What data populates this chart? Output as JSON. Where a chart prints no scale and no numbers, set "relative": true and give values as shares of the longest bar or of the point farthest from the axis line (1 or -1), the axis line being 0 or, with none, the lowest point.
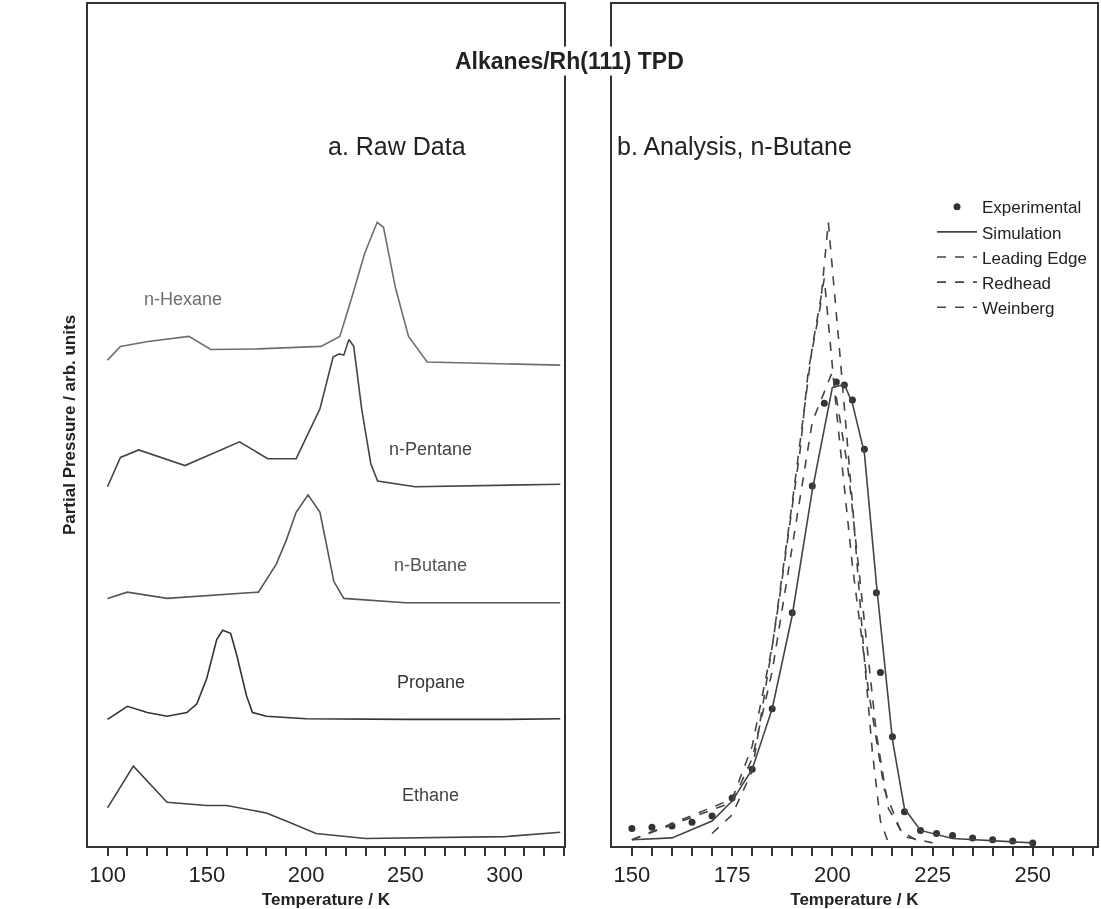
{
  "chart_data": [
    {
      "type": "line",
      "title": "Alkanes/Rh(111) TPD",
      "subtitle": "a. Raw Data",
      "xlabel": "Temperature / K",
      "ylabel": "Partial Pressure / arb. units",
      "relative": true,
      "legend": false,
      "marker": "none",
      "line_style": "solid",
      "xlim": [
        90,
        330
      ],
      "xticks": [
        100,
        {
          "value": 110,
          "label": null
        },
        {
          "value": 120,
          "label": null
        },
        {
          "value": 130,
          "label": null
        },
        {
          "value": 140,
          "label": null
        },
        150,
        {
          "value": 160,
          "label": null
        },
        {
          "value": 170,
          "label": null
        },
        {
          "value": 180,
          "label": null
        },
        {
          "value": 190,
          "label": null
        },
        200,
        {
          "value": 210,
          "label": null
        },
        {
          "value": 220,
          "label": null
        },
        {
          "value": 230,
          "label": null
        },
        {
          "value": 240,
          "label": null
        },
        250,
        {
          "value": 260,
          "label": null
        },
        {
          "value": 270,
          "label": null
        },
        {
          "value": 280,
          "label": null
        },
        {
          "value": 290,
          "label": null
        },
        300,
        {
          "value": 310,
          "label": null
        },
        {
          "value": 320,
          "label": null
        },
        {
          "value": 330,
          "label": null
        }
      ],
      "series": [
        {
          "name": "Ethane",
          "color": "#444444",
          "x": [
            100,
            113,
            130,
            150,
            160,
            180,
            190,
            205,
            230,
            300,
            328
          ],
          "values": [
            0.061,
            0.128,
            0.07,
            0.065,
            0.065,
            0.053,
            0.04,
            0.02,
            0.012,
            0.015,
            0.022
          ]
        },
        {
          "name": "Propane",
          "color": "#333333",
          "x": [
            100,
            110,
            120,
            130,
            140,
            145,
            150,
            155,
            158,
            162,
            165,
            170,
            173,
            180,
            200,
            250,
            300,
            328
          ],
          "values": [
            0.203,
            0.224,
            0.214,
            0.208,
            0.214,
            0.228,
            0.269,
            0.331,
            0.346,
            0.341,
            0.307,
            0.241,
            0.214,
            0.208,
            0.204,
            0.203,
            0.203,
            0.204
          ]
        },
        {
          "name": "n-Butane",
          "color": "#555555",
          "x": [
            100,
            110,
            130,
            176,
            185,
            190,
            195,
            201,
            207,
            214,
            219,
            250,
            328
          ],
          "values": [
            0.397,
            0.407,
            0.397,
            0.407,
            0.452,
            0.49,
            0.535,
            0.563,
            0.535,
            0.424,
            0.397,
            0.39,
            0.39
          ]
        },
        {
          "name": "n-Pentane",
          "color": "#444444",
          "x": [
            100,
            106.5,
            115.7,
            139,
            166.5,
            180.7,
            195,
            207,
            213.6,
            216.7,
            219,
            221.6,
            224,
            228,
            232.6,
            236,
            255,
            328
          ],
          "values": [
            0.576,
            0.623,
            0.635,
            0.61,
            0.648,
            0.621,
            0.621,
            0.701,
            0.784,
            0.789,
            0.787,
            0.812,
            0.801,
            0.701,
            0.613,
            0.585,
            0.576,
            0.58
          ]
        },
        {
          "name": "n-Hexane",
          "color": "#6e6e6e",
          "x": [
            100,
            106.5,
            120.4,
            141,
            152,
            176,
            207.5,
            217,
            223,
            229.5,
            235.8,
            239,
            245,
            251.6,
            261,
            328
          ],
          "values": [
            0.779,
            0.801,
            0.809,
            0.817,
            0.796,
            0.797,
            0.801,
            0.817,
            0.879,
            0.95,
            1.0,
            0.992,
            0.895,
            0.817,
            0.776,
            0.771
          ]
        }
      ]
    },
    {
      "type": "line",
      "subtitle": "b. Analysis, n-Butane",
      "xlabel": "Temperature / K",
      "relative": true,
      "legend": "top right",
      "xlim": [
        145,
        266
      ],
      "xticks": [
        150,
        {
          "value": 155,
          "label": null
        },
        {
          "value": 160,
          "label": null
        },
        {
          "value": 165,
          "label": null
        },
        {
          "value": 170,
          "label": null
        },
        175,
        {
          "value": 180,
          "label": null
        },
        {
          "value": 185,
          "label": null
        },
        {
          "value": 190,
          "label": null
        },
        {
          "value": 195,
          "label": null
        },
        200,
        {
          "value": 205,
          "label": null
        },
        {
          "value": 210,
          "label": null
        },
        {
          "value": 215,
          "label": null
        },
        {
          "value": 220,
          "label": null
        },
        225,
        {
          "value": 230,
          "label": null
        },
        {
          "value": 235,
          "label": null
        },
        {
          "value": 240,
          "label": null
        },
        {
          "value": 245,
          "label": null
        },
        250,
        {
          "value": 255,
          "label": null
        },
        {
          "value": 260,
          "label": null
        },
        {
          "value": 265,
          "label": null
        }
      ],
      "series": [
        {
          "name": "Experimental",
          "type": "scatter",
          "marker": "circle",
          "color": "#333333",
          "x": [
            150,
            155,
            160,
            165,
            170,
            175,
            180,
            185,
            190,
            195,
            198,
            201,
            203,
            205,
            208,
            211,
            212,
            215,
            218,
            222,
            226,
            230,
            235,
            240,
            245,
            250
          ],
          "values": [
            0.028,
            0.03,
            0.032,
            0.038,
            0.048,
            0.077,
            0.123,
            0.22,
            0.374,
            0.577,
            0.71,
            0.744,
            0.739,
            0.715,
            0.636,
            0.406,
            0.278,
            0.175,
            0.055,
            0.025,
            0.02,
            0.017,
            0.013,
            0.01,
            0.008,
            0.005
          ]
        },
        {
          "name": "Simulation",
          "color": "#444444",
          "line_style": "solid",
          "x": [
            150,
            160,
            170,
            175,
            180,
            185,
            190,
            195,
            200,
            203,
            205,
            208,
            211,
            215,
            218,
            222,
            230,
            250
          ],
          "values": [
            0.01,
            0.013,
            0.04,
            0.072,
            0.123,
            0.22,
            0.37,
            0.57,
            0.735,
            0.74,
            0.71,
            0.63,
            0.42,
            0.17,
            0.06,
            0.025,
            0.012,
            0.005
          ]
        },
        {
          "name": "Leading Edge",
          "color": "#444444",
          "line_style": "dashed",
          "x": [
            150,
            175,
            180,
            185,
            190,
            195,
            198,
            201,
            205,
            209,
            213,
            217,
            222
          ],
          "values": [
            0.01,
            0.075,
            0.16,
            0.32,
            0.55,
            0.8,
            0.91,
            0.7,
            0.45,
            0.25,
            0.09,
            0.025,
            0.005
          ]
        },
        {
          "name": "Redhead",
          "color": "#444444",
          "line_style": "dashed",
          "x": [
            170,
            175,
            180,
            185,
            187,
            192,
            194,
            197,
            199,
            202,
            205,
            208,
            210,
            212,
            214
          ],
          "values": [
            0.02,
            0.05,
            0.12,
            0.32,
            0.406,
            0.636,
            0.762,
            0.865,
            1.0,
            0.78,
            0.55,
            0.3,
            0.15,
            0.04,
            0.005
          ]
        },
        {
          "name": "Weinberg",
          "color": "#444444",
          "line_style": "dashed",
          "x": [
            150,
            175,
            180,
            185,
            190,
            195,
            200,
            204,
            208,
            211,
            214,
            218,
            225
          ],
          "values": [
            0.01,
            0.07,
            0.14,
            0.28,
            0.48,
            0.68,
            0.76,
            0.6,
            0.36,
            0.18,
            0.06,
            0.015,
            0.005
          ]
        }
      ]
    }
  ]
}
